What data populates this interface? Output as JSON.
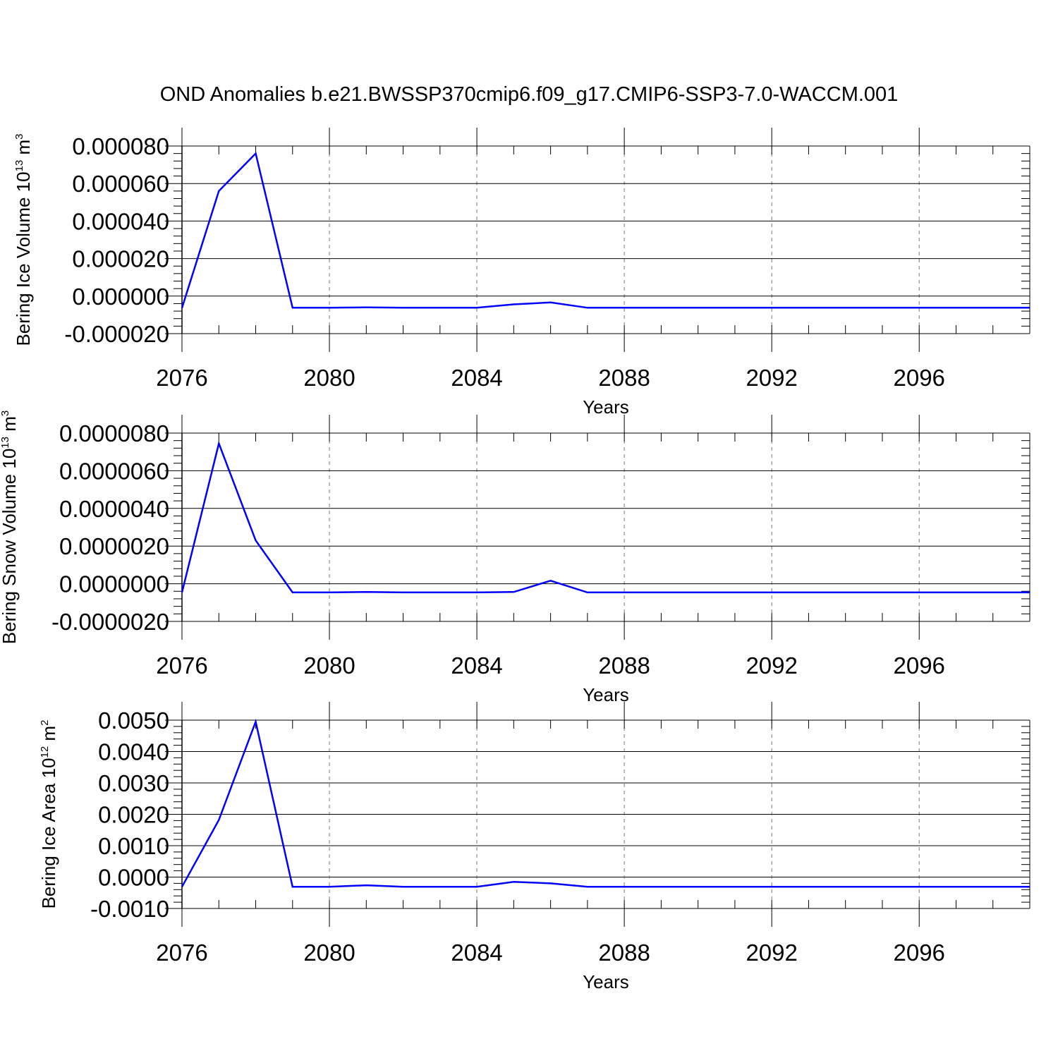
{
  "title": "OND Anomalies b.e21.BWSSP370cmip6.f09_g17.CMIP6-SSP3-7.0-WACCM.001",
  "chart_data": [
    {
      "type": "line",
      "xlabel": "Years",
      "ylabel": {
        "text": "Bering Ice Volume 10",
        "exponent": "13",
        "unit": " m",
        "unit_exponent": "3"
      },
      "x_tick_labels": [
        "2076",
        "2080",
        "2084",
        "2088",
        "2092",
        "2096"
      ],
      "y_tick_labels": [
        "-0.000020",
        "0.000000",
        "0.000020",
        "0.000040",
        "0.000060",
        "0.000080"
      ],
      "y_ticks": [
        -2e-05,
        0,
        2e-05,
        4e-05,
        6e-05,
        8e-05
      ],
      "ylim": [
        -2e-05,
        8e-05
      ],
      "xlim": [
        2076,
        2099
      ],
      "grid": "vertical dashed at major x ticks",
      "line_color": "#0000ff",
      "x": [
        2076,
        2077,
        2078,
        2079,
        2080,
        2081,
        2082,
        2083,
        2084,
        2085,
        2086,
        2087,
        2088,
        2089,
        2090,
        2091,
        2092,
        2093,
        2094,
        2095,
        2096,
        2097,
        2098,
        2099
      ],
      "values": [
        -6.3e-06,
        5.6e-05,
        7.6e-05,
        -6.2e-06,
        -6.2e-06,
        -6e-06,
        -6.2e-06,
        -6.2e-06,
        -6.2e-06,
        -4.4e-06,
        -3.4e-06,
        -6.2e-06,
        -6.2e-06,
        -6.2e-06,
        -6.2e-06,
        -6.2e-06,
        -6.2e-06,
        -6.2e-06,
        -6.2e-06,
        -6.2e-06,
        -6.2e-06,
        -6.2e-06,
        -6.2e-06,
        -6.2e-06
      ]
    },
    {
      "type": "line",
      "xlabel": "Years",
      "ylabel": {
        "text": "Bering Snow Volume 10",
        "exponent": "13",
        "unit": " m",
        "unit_exponent": "3"
      },
      "x_tick_labels": [
        "2076",
        "2080",
        "2084",
        "2088",
        "2092",
        "2096"
      ],
      "y_tick_labels": [
        "-0.0000020",
        "0.0000000",
        "0.0000020",
        "0.0000040",
        "0.0000060",
        "0.0000080"
      ],
      "y_ticks": [
        -2e-06,
        0,
        2e-06,
        4e-06,
        6e-06,
        8e-06
      ],
      "ylim": [
        -2e-06,
        8e-06
      ],
      "xlim": [
        2076,
        2099
      ],
      "grid": "vertical dashed at major x ticks",
      "line_color": "#0000ff",
      "x": [
        2076,
        2077,
        2078,
        2079,
        2080,
        2081,
        2082,
        2083,
        2084,
        2085,
        2086,
        2087,
        2088,
        2089,
        2090,
        2091,
        2092,
        2093,
        2094,
        2095,
        2096,
        2097,
        2098,
        2099
      ],
      "values": [
        -4.6e-07,
        7.45e-06,
        2.3e-06,
        -4.6e-07,
        -4.6e-07,
        -4.4e-07,
        -4.6e-07,
        -4.6e-07,
        -4.6e-07,
        -4.4e-07,
        1.6e-07,
        -4.6e-07,
        -4.6e-07,
        -4.6e-07,
        -4.6e-07,
        -4.6e-07,
        -4.6e-07,
        -4.6e-07,
        -4.6e-07,
        -4.6e-07,
        -4.6e-07,
        -4.6e-07,
        -4.6e-07,
        -4.6e-07
      ]
    },
    {
      "type": "line",
      "xlabel": "Years",
      "ylabel": {
        "text": "Bering Ice Area 10",
        "exponent": "12",
        "unit": " m",
        "unit_exponent": "2"
      },
      "x_tick_labels": [
        "2076",
        "2080",
        "2084",
        "2088",
        "2092",
        "2096"
      ],
      "y_tick_labels": [
        "-0.0010",
        "0.0000",
        "0.0010",
        "0.0020",
        "0.0030",
        "0.0040",
        "0.0050"
      ],
      "y_ticks": [
        -0.001,
        0,
        0.001,
        0.002,
        0.003,
        0.004,
        0.005
      ],
      "ylim": [
        -0.001,
        0.005
      ],
      "xlim": [
        2076,
        2099
      ],
      "grid": "vertical dashed at major x ticks",
      "line_color": "#0000ff",
      "x": [
        2076,
        2077,
        2078,
        2079,
        2080,
        2081,
        2082,
        2083,
        2084,
        2085,
        2086,
        2087,
        2088,
        2089,
        2090,
        2091,
        2092,
        2093,
        2094,
        2095,
        2096,
        2097,
        2098,
        2099
      ],
      "values": [
        -0.00031,
        0.00182,
        0.00495,
        -0.00031,
        -0.00031,
        -0.00026,
        -0.00031,
        -0.00031,
        -0.00031,
        -0.00015,
        -0.0002,
        -0.00031,
        -0.00031,
        -0.00031,
        -0.00031,
        -0.00031,
        -0.00031,
        -0.00031,
        -0.00031,
        -0.00031,
        -0.00031,
        -0.00031,
        -0.00031,
        -0.00031
      ]
    }
  ]
}
